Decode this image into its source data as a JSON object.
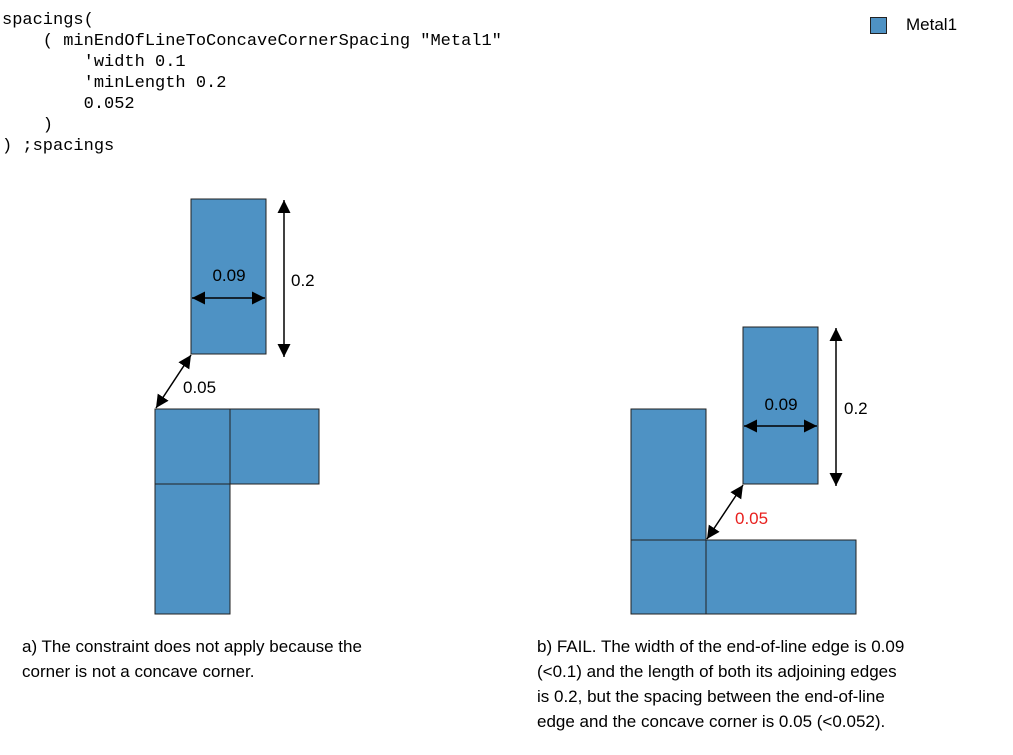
{
  "code": {
    "lines": [
      "spacings(",
      "    ( minEndOfLineToConcaveCornerSpacing \"Metal1\"",
      "        'width 0.1",
      "        'minLength 0.2",
      "        0.052",
      "    )",
      ") ;spacings"
    ]
  },
  "legend": {
    "label": "Metal1",
    "color": "#4e92c4"
  },
  "diagram_a": {
    "width_label": "0.09",
    "length_label": "0.2",
    "spacing_label": "0.05"
  },
  "diagram_b": {
    "width_label": "0.09",
    "length_label": "0.2",
    "spacing_label": "0.05",
    "spacing_color": "#e8201e"
  },
  "captions": {
    "a": [
      "a) The constraint does not apply because the",
      "corner is not a concave corner."
    ],
    "b": [
      "b) FAIL. The width of the end-of-line edge is 0.09",
      "(<0.1) and the length of both its adjoining edges",
      "is 0.2, but the spacing between the end-of-line",
      "edge and the concave corner is 0.05 (<0.052)."
    ]
  }
}
